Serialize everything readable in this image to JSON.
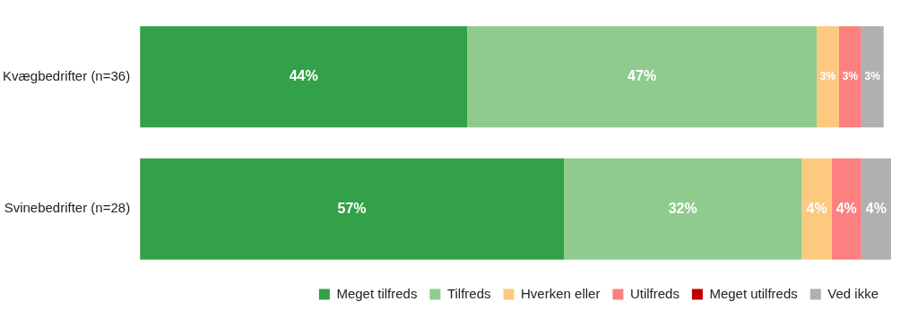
{
  "chart_data": {
    "type": "bar",
    "orientation": "horizontal",
    "stacked": true,
    "legend": "bottom",
    "categories": [
      "Kvægbedrifter (n=36)",
      "Svinebedrifter (n=28)"
    ],
    "series": [
      {
        "name": "Meget tilfreds",
        "color": "#33a04a",
        "values": [
          44,
          57
        ],
        "value_labels": [
          "44%",
          "57%"
        ]
      },
      {
        "name": "Tilfreds",
        "color": "#8fcb8f",
        "values": [
          47,
          32
        ],
        "value_labels": [
          "47%",
          "32%"
        ]
      },
      {
        "name": "Hverken eller",
        "color": "#fdc97f",
        "values": [
          3,
          4
        ],
        "value_labels": [
          "3%",
          "4%"
        ]
      },
      {
        "name": "Utilfreds",
        "color": "#fc8080",
        "values": [
          3,
          4
        ],
        "value_labels": [
          "3%",
          "4%"
        ]
      },
      {
        "name": "Meget utilfreds",
        "color": "#c00000",
        "values": [
          null,
          null
        ],
        "value_labels": [
          null,
          null
        ]
      },
      {
        "name": "Ved ikke",
        "color": "#b0b0b0",
        "values": [
          3,
          4
        ],
        "value_labels": [
          "3%",
          "4%"
        ]
      }
    ]
  }
}
